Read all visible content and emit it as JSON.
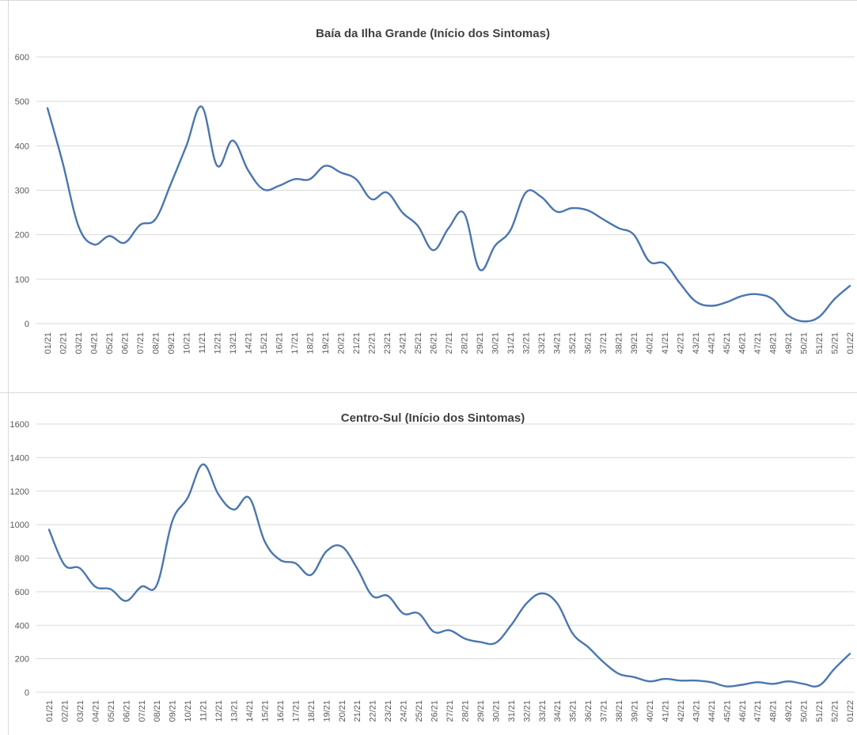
{
  "chart_data": [
    {
      "type": "line",
      "title": "Baía da Ilha Grande (Início dos Sintomas)",
      "xlabel": "",
      "ylabel": "",
      "ylim": [
        0,
        600
      ],
      "yticks": [
        0,
        100,
        200,
        300,
        400,
        500,
        600
      ],
      "grid": true,
      "categories": [
        "01/21",
        "02/21",
        "03/21",
        "04/21",
        "05/21",
        "06/21",
        "07/21",
        "08/21",
        "09/21",
        "10/21",
        "11/21",
        "12/21",
        "13/21",
        "14/21",
        "15/21",
        "16/21",
        "17/21",
        "18/21",
        "19/21",
        "20/21",
        "21/21",
        "22/21",
        "23/21",
        "24/21",
        "25/21",
        "26/21",
        "27/21",
        "28/21",
        "29/21",
        "30/21",
        "31/21",
        "32/21",
        "33/21",
        "34/21",
        "35/21",
        "36/21",
        "37/21",
        "38/21",
        "39/21",
        "40/21",
        "41/21",
        "42/21",
        "43/21",
        "44/21",
        "45/21",
        "46/21",
        "47/21",
        "48/21",
        "49/21",
        "50/21",
        "51/21",
        "52/21",
        "01/22"
      ],
      "series": [
        {
          "values": [
            485,
            360,
            220,
            178,
            197,
            182,
            222,
            235,
            315,
            400,
            488,
            355,
            412,
            345,
            302,
            310,
            325,
            325,
            355,
            340,
            325,
            280,
            295,
            250,
            220,
            165,
            215,
            248,
            122,
            175,
            210,
            295,
            285,
            252,
            260,
            255,
            235,
            215,
            200,
            140,
            135,
            90,
            50,
            40,
            48,
            62,
            66,
            55,
            18,
            5,
            15,
            55,
            85
          ]
        }
      ]
    },
    {
      "type": "line",
      "title": "Centro-Sul (Início dos Sintomas)",
      "xlabel": "",
      "ylabel": "",
      "ylim": [
        0,
        1600
      ],
      "yticks": [
        0,
        200,
        400,
        600,
        800,
        1000,
        1200,
        1400,
        1600
      ],
      "grid": true,
      "categories": [
        "01/21",
        "02/21",
        "03/21",
        "04/21",
        "05/21",
        "06/21",
        "07/21",
        "08/21",
        "09/21",
        "10/21",
        "11/21",
        "12/21",
        "13/21",
        "14/21",
        "15/21",
        "16/21",
        "17/21",
        "18/21",
        "19/21",
        "20/21",
        "21/21",
        "22/21",
        "23/21",
        "24/21",
        "25/21",
        "26/21",
        "27/21",
        "28/21",
        "29/21",
        "30/21",
        "31/21",
        "32/21",
        "33/21",
        "34/21",
        "35/21",
        "36/21",
        "37/21",
        "38/21",
        "39/21",
        "40/21",
        "41/21",
        "42/21",
        "43/21",
        "44/21",
        "45/21",
        "46/21",
        "47/21",
        "48/21",
        "49/21",
        "50/21",
        "51/21",
        "52/21",
        "01/22"
      ],
      "series": [
        {
          "values": [
            970,
            760,
            740,
            630,
            615,
            545,
            630,
            640,
            1020,
            1160,
            1360,
            1180,
            1090,
            1160,
            900,
            790,
            770,
            700,
            840,
            870,
            740,
            575,
            575,
            470,
            470,
            360,
            370,
            320,
            300,
            295,
            400,
            530,
            590,
            530,
            350,
            270,
            180,
            110,
            90,
            65,
            80,
            70,
            70,
            60,
            35,
            45,
            60,
            50,
            65,
            50,
            40,
            140,
            230
          ]
        }
      ]
    }
  ]
}
